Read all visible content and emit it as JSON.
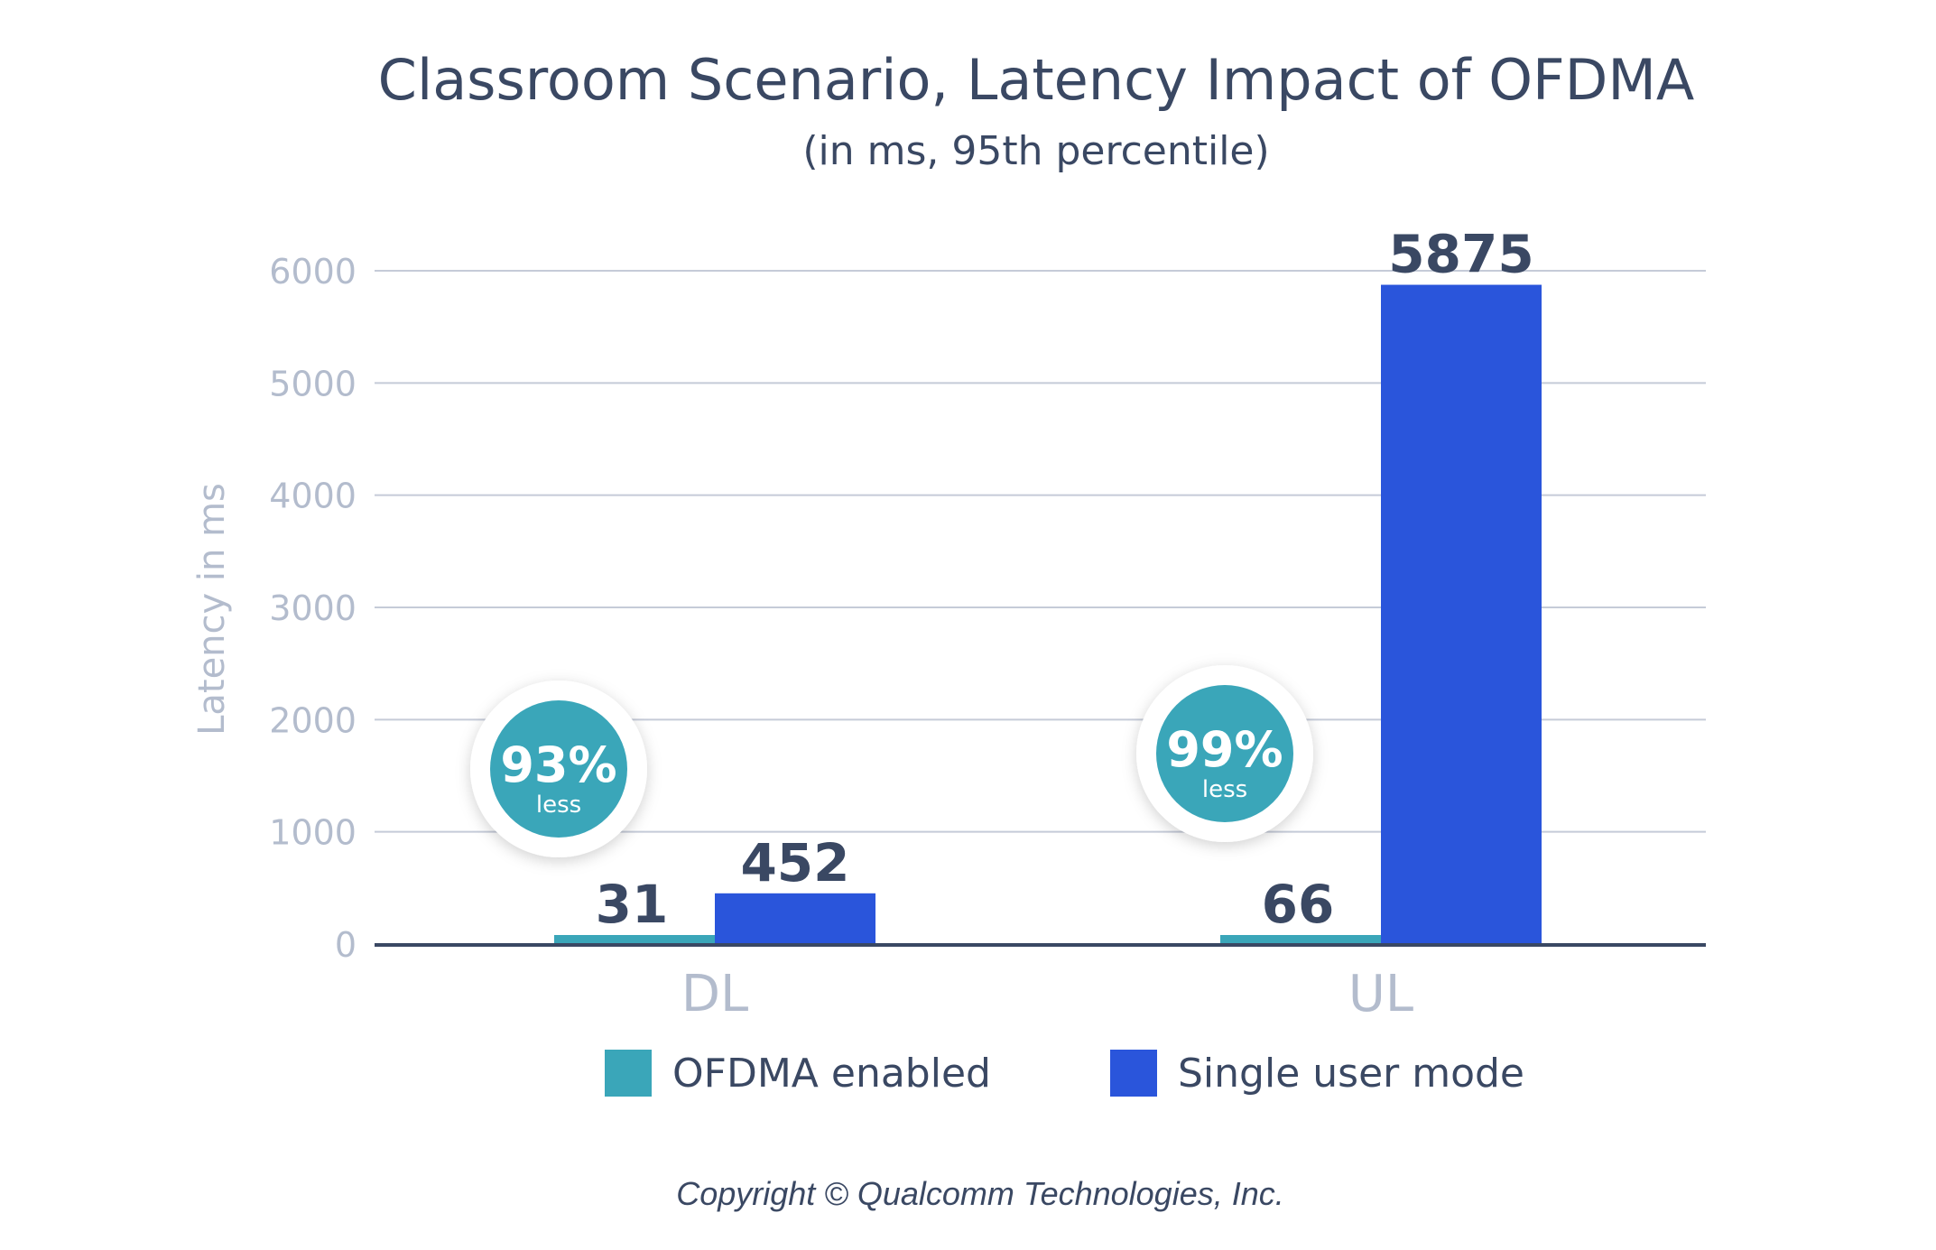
{
  "chart_data": {
    "type": "bar",
    "title": "Classroom Scenario, Latency Impact of OFDMA",
    "subtitle": "(in ms, 95th percentile)",
    "xlabel": "",
    "ylabel": "Latency in ms",
    "categories": [
      "DL",
      "UL"
    ],
    "ylim": [
      0,
      6000
    ],
    "yticks": [
      0,
      1000,
      2000,
      3000,
      4000,
      5000,
      6000
    ],
    "series": [
      {
        "name": "OFDMA enabled",
        "values": [
          31,
          66
        ],
        "labels": [
          "31",
          "66"
        ],
        "color": "#3aa6b9"
      },
      {
        "name": "Single user mode",
        "values": [
          452,
          5875
        ],
        "labels": [
          "452",
          "5875"
        ],
        "color": "#2a55db"
      }
    ],
    "annotations": [
      {
        "category": "DL",
        "value": "93%",
        "text": "less"
      },
      {
        "category": "UL",
        "value": "99%",
        "text": "less"
      }
    ],
    "grid": true,
    "legend_position": "bottom"
  },
  "footer": {
    "copyright": "Copyright © Qualcomm Technologies, Inc."
  },
  "colors": {
    "title": "#3a4863",
    "tick": "#b3bccd",
    "grid": "#c5cbd8",
    "baseline": "#3a4863",
    "badge_fill": "#3aa6b9"
  }
}
